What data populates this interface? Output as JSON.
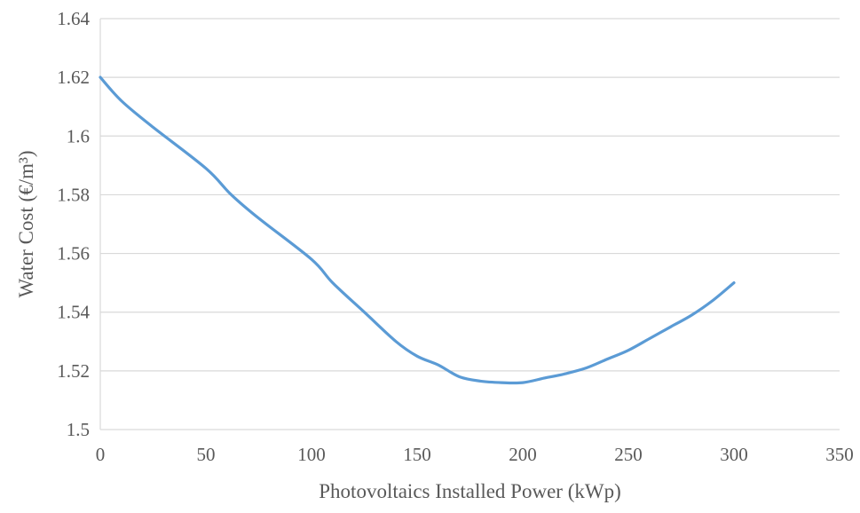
{
  "chart_data": {
    "type": "line",
    "title": "",
    "xlabel": "Photovoltaics Installed Power (kWp)",
    "ylabel": "Water Cost (€/m³)",
    "xlim": [
      0,
      350
    ],
    "ylim": [
      1.5,
      1.64
    ],
    "xticks": [
      "0",
      "50",
      "100",
      "150",
      "200",
      "250",
      "300",
      "350"
    ],
    "yticks": [
      "1.5",
      "1.52",
      "1.54",
      "1.56",
      "1.58",
      "1.6",
      "1.62",
      "1.64"
    ],
    "grid": "horizontal",
    "legend": "none",
    "series": [
      {
        "color": "#5b9bd5",
        "x": [
          0,
          10,
          25,
          50,
          62,
          75,
          100,
          110,
          125,
          140,
          150,
          160,
          170,
          180,
          190,
          200,
          210,
          220,
          230,
          240,
          250,
          260,
          270,
          280,
          290,
          300
        ],
        "y": [
          1.62,
          1.612,
          1.603,
          1.589,
          1.58,
          1.572,
          1.558,
          1.55,
          1.54,
          1.53,
          1.525,
          1.522,
          1.518,
          1.5165,
          1.516,
          1.516,
          1.5175,
          1.519,
          1.521,
          1.524,
          1.527,
          1.531,
          1.535,
          1.539,
          1.544,
          1.55
        ]
      }
    ]
  }
}
